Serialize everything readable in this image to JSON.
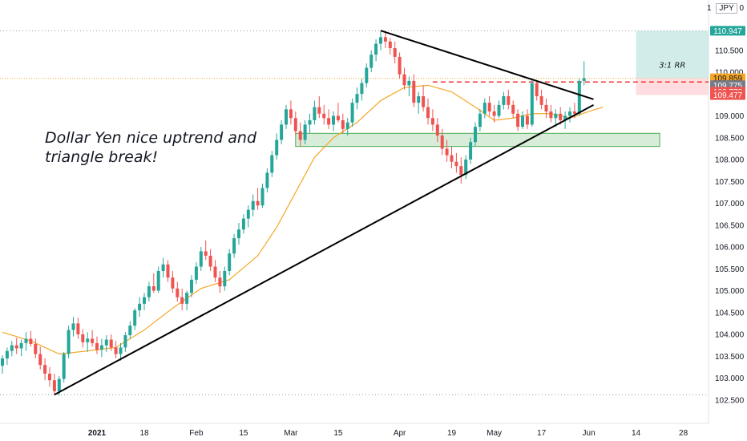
{
  "currency": {
    "prefix": "1",
    "label": "JPY",
    "suffix": "0"
  },
  "annotation": {
    "line1": "Dollar Yen nice uptrend and",
    "line2": "triangle break!"
  },
  "rr_label": "3:1 RR",
  "colors": {
    "up": "#26a69a",
    "down": "#ef5350",
    "ma": "#f5a623",
    "target_zone": "#b2dfdb",
    "stop_zone": "#ffcdd2",
    "support_zone": "#c8e6c9",
    "trendline": "#000000",
    "entry_line": "#e53935"
  },
  "price_tags": [
    {
      "label": "110.947",
      "value": 110.947,
      "color": "#26a69a",
      "text": "light"
    },
    {
      "label": "109.859",
      "value": 109.859,
      "color": "#f5a623",
      "text": "dark"
    },
    {
      "label": "109.775",
      "value": 109.775,
      "color": "#787b86",
      "text": "light"
    },
    {
      "label": "109.773",
      "value": 109.773,
      "color": "#ef5350",
      "text": "light"
    },
    {
      "label": "109.477",
      "value": 109.477,
      "color": "#ef5350",
      "text": "light"
    }
  ],
  "chart_data": {
    "type": "candlestick",
    "title": "",
    "ylim": [
      102.3,
      111.3
    ],
    "y_ticks": [
      102.5,
      103.0,
      103.5,
      104.0,
      104.5,
      105.0,
      105.5,
      106.0,
      106.5,
      107.0,
      107.5,
      108.0,
      108.5,
      109.0,
      109.5,
      110.0,
      110.5
    ],
    "y_tick_labels": [
      "102.500",
      "103.000",
      "103.500",
      "104.000",
      "104.500",
      "105.000",
      "105.500",
      "106.000",
      "106.500",
      "107.000",
      "107.500",
      "108.000",
      "108.500",
      "109.000",
      "109.500",
      "110.000",
      "110.500"
    ],
    "x_ticks": [
      {
        "label": "2021",
        "bar": 20,
        "bold": true
      },
      {
        "label": "18",
        "bar": 30,
        "bold": false
      },
      {
        "label": "Feb",
        "bar": 41,
        "bold": false
      },
      {
        "label": "15",
        "bar": 51,
        "bold": false
      },
      {
        "label": "Mar",
        "bar": 61,
        "bold": false
      },
      {
        "label": "15",
        "bar": 71,
        "bold": false
      },
      {
        "label": "Apr",
        "bar": 84,
        "bold": false
      },
      {
        "label": "19",
        "bar": 95,
        "bold": false
      },
      {
        "label": "May",
        "bar": 104,
        "bold": false
      },
      {
        "label": "17",
        "bar": 114,
        "bold": false
      },
      {
        "label": "Jun",
        "bar": 124,
        "bold": false
      },
      {
        "label": "14",
        "bar": 134,
        "bold": false
      },
      {
        "label": "28",
        "bar": 144,
        "bold": false
      }
    ],
    "bar_count": 150,
    "ohlc": [
      [
        103.28,
        103.52,
        103.1,
        103.45
      ],
      [
        103.45,
        103.7,
        103.3,
        103.62
      ],
      [
        103.62,
        103.85,
        103.5,
        103.75
      ],
      [
        103.75,
        103.92,
        103.55,
        103.68
      ],
      [
        103.68,
        103.88,
        103.5,
        103.8
      ],
      [
        103.8,
        104.05,
        103.62,
        103.9
      ],
      [
        103.9,
        104.08,
        103.72,
        103.78
      ],
      [
        103.78,
        103.9,
        103.45,
        103.55
      ],
      [
        103.55,
        103.72,
        103.2,
        103.3
      ],
      [
        103.3,
        103.45,
        102.95,
        103.1
      ],
      [
        103.1,
        103.25,
        102.8,
        102.95
      ],
      [
        102.95,
        103.1,
        102.6,
        102.7
      ],
      [
        102.7,
        103.05,
        102.6,
        102.98
      ],
      [
        102.98,
        103.6,
        102.9,
        103.55
      ],
      [
        103.55,
        104.2,
        103.45,
        104.1
      ],
      [
        104.1,
        104.4,
        103.95,
        104.25
      ],
      [
        104.25,
        104.38,
        103.9,
        104.0
      ],
      [
        104.0,
        104.12,
        103.7,
        103.82
      ],
      [
        103.82,
        104.05,
        103.6,
        103.9
      ],
      [
        103.9,
        104.1,
        103.72,
        103.8
      ],
      [
        103.8,
        103.95,
        103.55,
        103.65
      ],
      [
        103.65,
        103.9,
        103.48,
        103.75
      ],
      [
        103.75,
        103.98,
        103.6,
        103.88
      ],
      [
        103.88,
        104.0,
        103.62,
        103.7
      ],
      [
        103.7,
        103.85,
        103.45,
        103.55
      ],
      [
        103.55,
        103.8,
        103.4,
        103.7
      ],
      [
        103.7,
        104.05,
        103.6,
        103.98
      ],
      [
        103.98,
        104.3,
        103.9,
        104.2
      ],
      [
        104.2,
        104.6,
        104.1,
        104.55
      ],
      [
        104.55,
        104.85,
        104.4,
        104.7
      ],
      [
        104.7,
        104.95,
        104.55,
        104.85
      ],
      [
        104.85,
        105.2,
        104.75,
        105.1
      ],
      [
        105.1,
        105.4,
        104.95,
        105.0
      ],
      [
        105.0,
        105.55,
        104.95,
        105.45
      ],
      [
        105.45,
        105.75,
        105.3,
        105.6
      ],
      [
        105.6,
        105.7,
        105.2,
        105.3
      ],
      [
        105.3,
        105.45,
        104.95,
        105.05
      ],
      [
        105.05,
        105.2,
        104.75,
        104.85
      ],
      [
        104.85,
        105.05,
        104.55,
        104.7
      ],
      [
        104.7,
        105.0,
        104.55,
        104.95
      ],
      [
        104.95,
        105.35,
        104.85,
        105.25
      ],
      [
        105.25,
        105.65,
        105.15,
        105.55
      ],
      [
        105.55,
        106.0,
        105.45,
        105.9
      ],
      [
        105.9,
        106.15,
        105.7,
        105.8
      ],
      [
        105.8,
        105.95,
        105.45,
        105.55
      ],
      [
        105.55,
        105.7,
        105.2,
        105.3
      ],
      [
        105.3,
        105.45,
        104.95,
        105.1
      ],
      [
        105.1,
        105.55,
        105.0,
        105.45
      ],
      [
        105.45,
        105.95,
        105.35,
        105.85
      ],
      [
        105.85,
        106.3,
        105.75,
        106.2
      ],
      [
        106.2,
        106.55,
        106.05,
        106.4
      ],
      [
        106.4,
        106.75,
        106.3,
        106.65
      ],
      [
        106.65,
        106.95,
        106.45,
        106.85
      ],
      [
        106.85,
        107.2,
        106.7,
        107.05
      ],
      [
        107.05,
        107.35,
        106.85,
        106.95
      ],
      [
        106.95,
        107.45,
        106.9,
        107.35
      ],
      [
        107.35,
        107.8,
        107.25,
        107.7
      ],
      [
        107.7,
        108.2,
        107.6,
        108.1
      ],
      [
        108.1,
        108.6,
        108.0,
        108.45
      ],
      [
        108.45,
        108.9,
        108.35,
        108.8
      ],
      [
        108.8,
        109.25,
        108.7,
        109.15
      ],
      [
        109.15,
        109.35,
        108.8,
        108.95
      ],
      [
        108.95,
        109.1,
        108.55,
        108.65
      ],
      [
        108.65,
        108.85,
        108.3,
        108.45
      ],
      [
        108.45,
        108.9,
        108.35,
        108.8
      ],
      [
        108.8,
        109.05,
        108.6,
        108.9
      ],
      [
        108.9,
        109.35,
        108.8,
        109.2
      ],
      [
        109.2,
        109.45,
        108.95,
        109.05
      ],
      [
        109.05,
        109.25,
        108.8,
        108.95
      ],
      [
        108.95,
        109.15,
        108.7,
        108.8
      ],
      [
        108.8,
        109.1,
        108.65,
        109.0
      ],
      [
        109.0,
        109.3,
        108.85,
        108.9
      ],
      [
        108.9,
        109.05,
        108.6,
        108.7
      ],
      [
        108.7,
        108.95,
        108.55,
        108.85
      ],
      [
        108.85,
        109.4,
        108.75,
        109.3
      ],
      [
        109.3,
        109.65,
        109.15,
        109.5
      ],
      [
        109.5,
        109.85,
        109.35,
        109.75
      ],
      [
        109.75,
        110.2,
        109.65,
        110.1
      ],
      [
        110.1,
        110.5,
        110.0,
        110.4
      ],
      [
        110.4,
        110.75,
        110.25,
        110.65
      ],
      [
        110.65,
        110.95,
        110.5,
        110.8
      ],
      [
        110.8,
        110.9,
        110.55,
        110.7
      ],
      [
        110.7,
        110.78,
        110.4,
        110.55
      ],
      [
        110.55,
        110.7,
        110.2,
        110.35
      ],
      [
        110.35,
        110.45,
        109.85,
        109.95
      ],
      [
        109.95,
        110.1,
        109.6,
        109.7
      ],
      [
        109.7,
        109.9,
        109.45,
        109.8
      ],
      [
        109.8,
        109.95,
        109.2,
        109.3
      ],
      [
        109.3,
        109.55,
        109.05,
        109.45
      ],
      [
        109.45,
        109.7,
        109.1,
        109.2
      ],
      [
        109.2,
        109.4,
        108.8,
        108.95
      ],
      [
        108.95,
        109.15,
        108.65,
        108.8
      ],
      [
        108.8,
        108.95,
        108.4,
        108.55
      ],
      [
        108.55,
        108.7,
        108.1,
        108.25
      ],
      [
        108.25,
        108.45,
        107.95,
        108.1
      ],
      [
        108.1,
        108.3,
        107.8,
        107.95
      ],
      [
        107.95,
        108.15,
        107.7,
        107.85
      ],
      [
        107.85,
        108.05,
        107.45,
        107.65
      ],
      [
        107.65,
        108.1,
        107.55,
        108.0
      ],
      [
        108.0,
        108.5,
        107.9,
        108.4
      ],
      [
        108.4,
        108.85,
        108.3,
        108.75
      ],
      [
        108.75,
        109.15,
        108.65,
        109.05
      ],
      [
        109.05,
        109.4,
        108.95,
        109.3
      ],
      [
        109.3,
        109.45,
        109.0,
        109.1
      ],
      [
        109.1,
        109.25,
        108.85,
        109.0
      ],
      [
        109.0,
        109.35,
        108.95,
        109.25
      ],
      [
        109.25,
        109.55,
        109.15,
        109.45
      ],
      [
        109.45,
        109.6,
        109.15,
        109.25
      ],
      [
        109.25,
        109.35,
        108.95,
        109.05
      ],
      [
        109.05,
        109.15,
        108.65,
        108.75
      ],
      [
        108.75,
        109.1,
        108.7,
        109.0
      ],
      [
        109.0,
        109.15,
        108.7,
        108.8
      ],
      [
        108.8,
        109.85,
        108.75,
        109.75
      ],
      [
        109.75,
        109.82,
        109.35,
        109.45
      ],
      [
        109.45,
        109.6,
        109.15,
        109.25
      ],
      [
        109.25,
        109.4,
        108.95,
        109.1
      ],
      [
        109.1,
        109.25,
        108.85,
        108.95
      ],
      [
        108.95,
        109.15,
        108.75,
        109.05
      ],
      [
        109.05,
        109.2,
        108.8,
        108.9
      ],
      [
        108.9,
        109.1,
        108.7,
        109.0
      ],
      [
        109.0,
        109.2,
        108.85,
        109.1
      ],
      [
        109.1,
        109.3,
        108.95,
        109.05
      ],
      [
        109.05,
        109.85,
        109.0,
        109.8
      ],
      [
        109.8,
        110.25,
        109.7,
        109.86
      ]
    ],
    "moving_average": [
      {
        "bar": 0,
        "value": 104.05
      },
      {
        "bar": 6,
        "value": 103.85
      },
      {
        "bar": 12,
        "value": 103.55
      },
      {
        "bar": 18,
        "value": 103.62
      },
      {
        "bar": 24,
        "value": 103.7
      },
      {
        "bar": 30,
        "value": 104.1
      },
      {
        "bar": 36,
        "value": 104.6
      },
      {
        "bar": 42,
        "value": 105.05
      },
      {
        "bar": 48,
        "value": 105.25
      },
      {
        "bar": 54,
        "value": 105.8
      },
      {
        "bar": 58,
        "value": 106.45
      },
      {
        "bar": 62,
        "value": 107.25
      },
      {
        "bar": 66,
        "value": 108.05
      },
      {
        "bar": 70,
        "value": 108.5
      },
      {
        "bar": 75,
        "value": 108.85
      },
      {
        "bar": 80,
        "value": 109.35
      },
      {
        "bar": 85,
        "value": 109.65
      },
      {
        "bar": 90,
        "value": 109.7
      },
      {
        "bar": 95,
        "value": 109.55
      },
      {
        "bar": 100,
        "value": 109.2
      },
      {
        "bar": 104,
        "value": 108.9
      },
      {
        "bar": 108,
        "value": 108.95
      },
      {
        "bar": 112,
        "value": 109.05
      },
      {
        "bar": 116,
        "value": 109.05
      },
      {
        "bar": 120,
        "value": 108.95
      },
      {
        "bar": 124,
        "value": 109.1
      },
      {
        "bar": 127,
        "value": 109.2
      }
    ],
    "trendlines": [
      {
        "from": {
          "bar": 11,
          "value": 102.62
        },
        "to": {
          "bar": 125,
          "value": 109.25
        }
      },
      {
        "from": {
          "bar": 80,
          "value": 110.95
        },
        "to": {
          "bar": 125,
          "value": 109.38
        }
      }
    ],
    "levels": {
      "entry": 109.86,
      "target": 110.947,
      "stop": 109.477,
      "support_zone": [
        108.3,
        108.6
      ]
    }
  }
}
